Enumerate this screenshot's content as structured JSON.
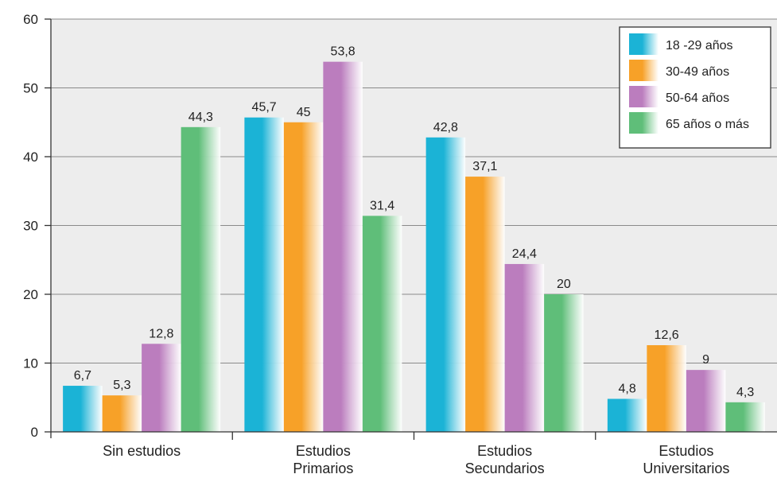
{
  "chart_data": {
    "type": "bar",
    "categories": [
      [
        "Sin estudios"
      ],
      [
        "Estudios",
        "Primarios"
      ],
      [
        "Estudios",
        "Secundarios"
      ],
      [
        "Estudios",
        "Universitarios"
      ]
    ],
    "series": [
      {
        "name": "18 -29 años",
        "values": [
          6.7,
          45.7,
          42.8,
          4.8
        ],
        "labels": [
          "6,7",
          "45,7",
          "42,8",
          "4,8"
        ],
        "color": "#1BB3D6"
      },
      {
        "name": "30-49 años",
        "values": [
          5.3,
          45,
          37.1,
          12.6
        ],
        "labels": [
          "5,3",
          "45",
          "37,1",
          "12,6"
        ],
        "color": "#F7A128"
      },
      {
        "name": "50-64 años",
        "values": [
          12.8,
          53.8,
          24.4,
          9
        ],
        "labels": [
          "12,8",
          "53,8",
          "24,4",
          "9"
        ],
        "color": "#BB7DBE"
      },
      {
        "name": "65 años o más",
        "values": [
          44.3,
          31.4,
          20,
          4.3
        ],
        "labels": [
          "44,3",
          "31,4",
          "20",
          "4,3"
        ],
        "color": "#5FBE79"
      }
    ],
    "ylim": [
      0,
      60
    ],
    "yticks": [
      "0",
      "10",
      "20",
      "30",
      "40",
      "50",
      "60"
    ],
    "grid": true,
    "legend": "top-right",
    "plot_background": "#ededed"
  }
}
